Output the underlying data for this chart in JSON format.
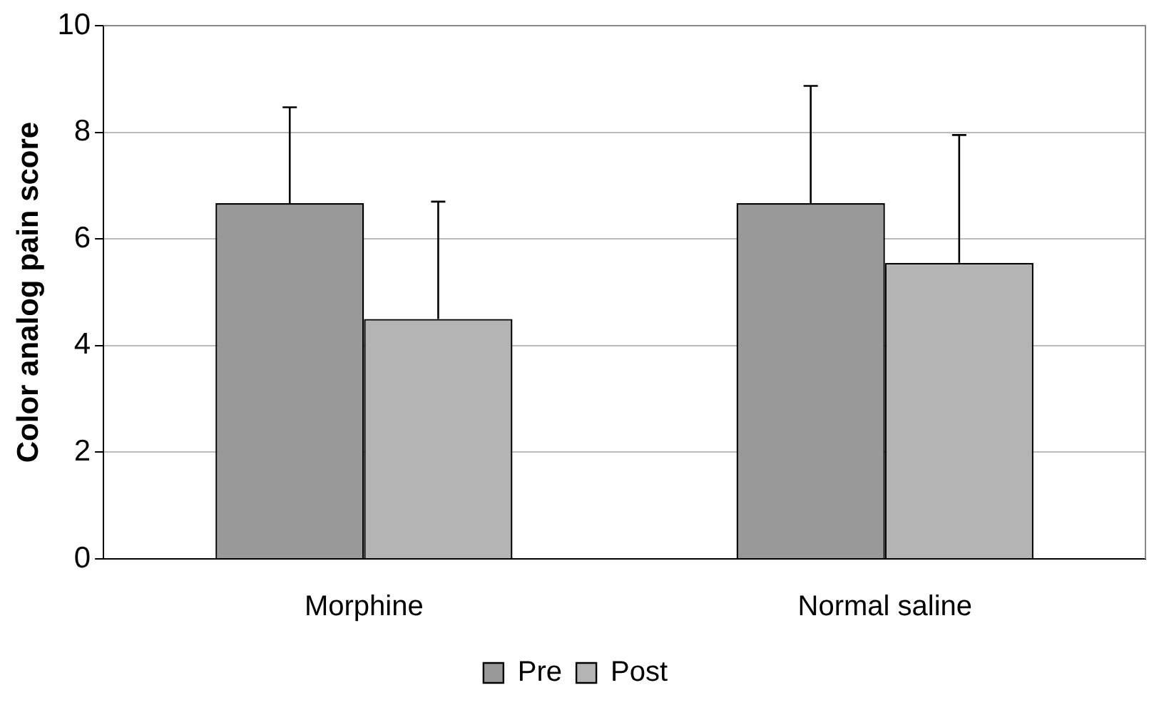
{
  "chart_data": {
    "type": "bar",
    "ylabel": "Color analog pain score",
    "categories": [
      "Morphine",
      "Normal saline"
    ],
    "series": [
      {
        "name": "Pre",
        "color": "#999999",
        "values": [
          6.67,
          6.67
        ],
        "errors": [
          [
            6.67,
            8.47
          ],
          [
            6.67,
            8.87
          ]
        ]
      },
      {
        "name": "Post",
        "color": "#b4b4b4",
        "values": [
          4.5,
          5.55
        ],
        "errors": [
          [
            4.5,
            6.7
          ],
          [
            5.55,
            7.95
          ]
        ]
      }
    ],
    "ylim": [
      0,
      10
    ],
    "yticks": [
      0,
      2,
      4,
      6,
      8,
      10
    ],
    "grid": "y",
    "legend": "bottom"
  }
}
